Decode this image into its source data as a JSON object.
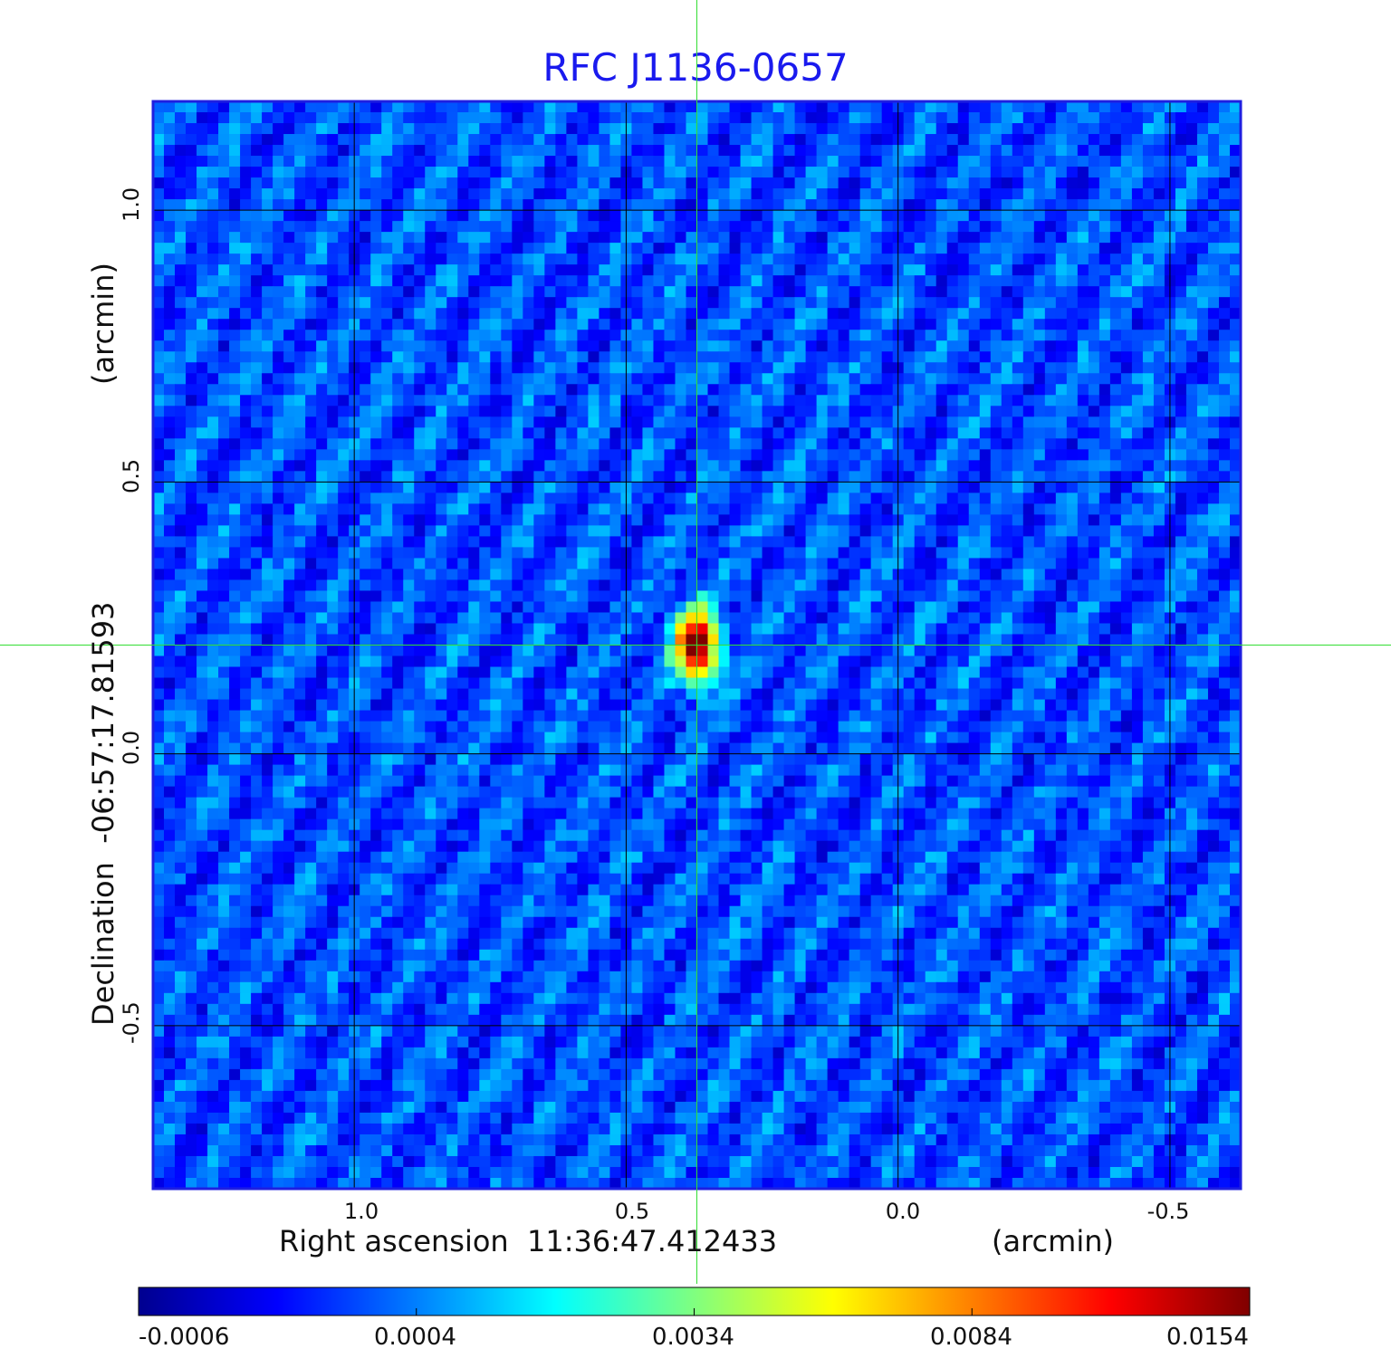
{
  "chart_data": {
    "type": "heatmap",
    "title": "RFC J1136-0657",
    "xlabel": "Right ascension  11:36:47.412433",
    "xunit": "(arcmin)",
    "ylabel": "Declination  -06:57:17.81593",
    "yunit": "(arcmin)",
    "xlim": [
      1.37,
      -0.63
    ],
    "ylim": [
      -0.8,
      1.2
    ],
    "x_ticks": [
      "1.0",
      "0.5",
      "0.0",
      "-0.5"
    ],
    "x_tick_values": [
      1.0,
      0.5,
      0.0,
      -0.5
    ],
    "y_ticks": [
      "1.0",
      "0.5",
      "0.0",
      "-0.5"
    ],
    "y_tick_values": [
      1.0,
      0.5,
      0.0,
      -0.5
    ],
    "grid": true,
    "crosshair": {
      "x": 0.37,
      "y": 0.2,
      "color": "#33dd33"
    },
    "source_peak": {
      "x": 0.37,
      "y": 0.2,
      "flux": 0.0154
    },
    "colorscale": "jet",
    "colorbar_ticks": [
      "-0.0006",
      "0.0004",
      "0.0034",
      "0.0084",
      "0.0154"
    ],
    "colorbar_tick_values": [
      -0.0006,
      0.0004,
      0.0034,
      0.0084,
      0.0154
    ],
    "noise_level_range": [
      -0.0006,
      0.0012
    ]
  },
  "colors": {
    "title": "#1a1aee",
    "frame": "#1f1fe0",
    "grid": "#000000",
    "crosshair": "#33dd33"
  }
}
